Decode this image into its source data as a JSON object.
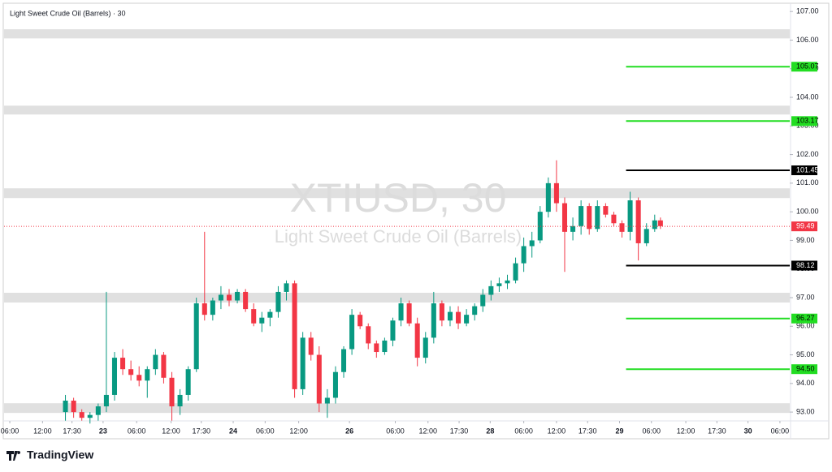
{
  "header": {
    "title": "Light Sweet Crude Oil (Barrels) · 30"
  },
  "watermark": {
    "symbol": "XTIUSD, 30",
    "name": "Light Sweet Crude Oil (Barrels)"
  },
  "footer": {
    "brand": "TradingView"
  },
  "chart_data": {
    "type": "candlestick",
    "up_color": "#089981",
    "down_color": "#f23645",
    "xlim": [
      0,
      96
    ],
    "ylim": [
      92.72,
      107.26
    ],
    "yticks": [
      {
        "value": 93,
        "label": "93.00"
      },
      {
        "value": 94,
        "label": "94.00"
      },
      {
        "value": 95,
        "label": "95.00"
      },
      {
        "value": 96,
        "label": "96.00"
      },
      {
        "value": 97,
        "label": "97.00"
      },
      {
        "value": 98,
        "label": "98.00"
      },
      {
        "value": 99,
        "label": "99.00"
      },
      {
        "value": 100,
        "label": "100.00"
      },
      {
        "value": 101,
        "label": "101.00"
      },
      {
        "value": 102,
        "label": "102.00"
      },
      {
        "value": 103,
        "label": "103.00"
      },
      {
        "value": 104,
        "label": "104.00"
      },
      {
        "value": 105,
        "label": "105.00"
      },
      {
        "value": 106,
        "label": "106.00"
      },
      {
        "value": 107,
        "label": "107.00"
      }
    ],
    "xticks": [
      {
        "value": 0.7,
        "label": "06:00"
      },
      {
        "value": 4.7,
        "label": "12:00"
      },
      {
        "value": 8.3,
        "label": "17:30"
      },
      {
        "value": 12.1,
        "label": "23"
      },
      {
        "value": 16.2,
        "label": "06:00"
      },
      {
        "value": 20.4,
        "label": "12:00"
      },
      {
        "value": 24.1,
        "label": "17:30"
      },
      {
        "value": 28,
        "label": "24"
      },
      {
        "value": 31.9,
        "label": "06:00"
      },
      {
        "value": 36,
        "label": "12:00"
      },
      {
        "value": 42.2,
        "label": "26"
      },
      {
        "value": 47.8,
        "label": "06:00"
      },
      {
        "value": 51.8,
        "label": "12:00"
      },
      {
        "value": 55.6,
        "label": "17:30"
      },
      {
        "value": 59.4,
        "label": "28"
      },
      {
        "value": 63.5,
        "label": "06:00"
      },
      {
        "value": 67.5,
        "label": "12:00"
      },
      {
        "value": 71.3,
        "label": "17:30"
      },
      {
        "value": 75.2,
        "label": "29"
      },
      {
        "value": 79.1,
        "label": "06:00"
      },
      {
        "value": 83.3,
        "label": "12:00"
      },
      {
        "value": 87.1,
        "label": "17:30"
      },
      {
        "value": 90.9,
        "label": "30"
      },
      {
        "value": 94.8,
        "label": "06:00"
      }
    ],
    "x": [
      7.5,
      8.5,
      9.5,
      10.5,
      11.5,
      12.5,
      13.5,
      14.5,
      15.5,
      16.5,
      17.5,
      18.5,
      19.5,
      20.5,
      21.5,
      22.5,
      23.5,
      24.5,
      25.5,
      26.5,
      27.5,
      28.5,
      29.5,
      30.5,
      31.5,
      32.5,
      33.5,
      34.5,
      35.5,
      36.5,
      37.5,
      38.5,
      39.5,
      40.5,
      41.5,
      42.5,
      43.5,
      44.5,
      45.5,
      46.5,
      47.5,
      48.5,
      49.5,
      50.5,
      51.5,
      52.5,
      53.5,
      54.5,
      55.5,
      56.5,
      57.5,
      58.5,
      59.5,
      60.5,
      61.5,
      62.5,
      63.5,
      64.5,
      65.5,
      66.5,
      67.5,
      68.5,
      69.5,
      70.5,
      71.5,
      72.5,
      73.5,
      74.5,
      75.5,
      76.5,
      77.5,
      78.5,
      79.5,
      80.2
    ],
    "ohlc": [
      [
        93.0,
        93.6,
        92.7,
        93.4
      ],
      [
        93.4,
        93.5,
        92.8,
        93.0
      ],
      [
        93.0,
        93.1,
        92.7,
        92.8
      ],
      [
        92.8,
        93.0,
        92.6,
        92.9
      ],
      [
        92.9,
        93.3,
        92.7,
        93.2
      ],
      [
        93.2,
        97.2,
        93.0,
        93.6
      ],
      [
        93.6,
        95.1,
        93.4,
        94.9
      ],
      [
        94.9,
        95.2,
        94.3,
        94.5
      ],
      [
        94.5,
        94.8,
        94.1,
        94.3
      ],
      [
        94.3,
        94.6,
        93.9,
        94.1
      ],
      [
        94.1,
        94.6,
        93.5,
        94.5
      ],
      [
        94.5,
        95.2,
        94.3,
        95.0
      ],
      [
        95.0,
        95.1,
        94.0,
        94.2
      ],
      [
        94.2,
        94.4,
        92.7,
        93.2
      ],
      [
        93.2,
        93.8,
        92.9,
        93.6
      ],
      [
        93.6,
        94.6,
        93.4,
        94.5
      ],
      [
        94.5,
        97.0,
        94.4,
        96.8
      ],
      [
        96.8,
        99.3,
        96.2,
        96.4
      ],
      [
        96.4,
        97.0,
        96.2,
        96.9
      ],
      [
        96.9,
        97.4,
        96.6,
        97.1
      ],
      [
        97.1,
        97.3,
        96.7,
        96.9
      ],
      [
        96.9,
        97.3,
        96.8,
        97.2
      ],
      [
        97.2,
        97.3,
        96.5,
        96.6
      ],
      [
        96.6,
        96.8,
        96.0,
        96.1
      ],
      [
        96.1,
        96.5,
        95.8,
        96.3
      ],
      [
        96.3,
        96.6,
        96.0,
        96.5
      ],
      [
        96.5,
        97.4,
        96.3,
        97.2
      ],
      [
        97.2,
        97.6,
        96.9,
        97.5
      ],
      [
        97.5,
        97.6,
        93.5,
        93.8
      ],
      [
        93.8,
        95.8,
        93.6,
        95.6
      ],
      [
        95.6,
        95.8,
        94.8,
        95.0
      ],
      [
        95.0,
        95.3,
        93.0,
        93.3
      ],
      [
        93.3,
        93.8,
        92.8,
        93.5
      ],
      [
        93.5,
        94.6,
        93.3,
        94.4
      ],
      [
        94.4,
        95.3,
        94.2,
        95.2
      ],
      [
        95.2,
        96.6,
        95.0,
        96.4
      ],
      [
        96.4,
        96.5,
        95.9,
        96.0
      ],
      [
        96.0,
        96.1,
        95.2,
        95.4
      ],
      [
        95.4,
        95.5,
        94.9,
        95.1
      ],
      [
        95.1,
        95.6,
        95.0,
        95.5
      ],
      [
        95.5,
        96.3,
        95.3,
        96.2
      ],
      [
        96.2,
        97.0,
        96.0,
        96.8
      ],
      [
        96.8,
        96.9,
        96.0,
        96.1
      ],
      [
        96.1,
        96.3,
        94.6,
        94.9
      ],
      [
        94.9,
        95.8,
        94.7,
        95.6
      ],
      [
        95.6,
        97.2,
        95.4,
        96.8
      ],
      [
        96.8,
        96.9,
        96.0,
        96.2
      ],
      [
        96.2,
        96.7,
        96.0,
        96.5
      ],
      [
        96.5,
        96.7,
        95.9,
        96.1
      ],
      [
        96.1,
        96.6,
        96.0,
        96.4
      ],
      [
        96.4,
        96.8,
        96.2,
        96.7
      ],
      [
        96.7,
        97.3,
        96.5,
        97.1
      ],
      [
        97.1,
        97.6,
        96.9,
        97.4
      ],
      [
        97.4,
        97.7,
        97.2,
        97.5
      ],
      [
        97.5,
        97.8,
        97.3,
        97.6
      ],
      [
        97.6,
        98.4,
        97.5,
        98.2
      ],
      [
        98.2,
        99.1,
        97.9,
        98.8
      ],
      [
        98.8,
        99.3,
        98.4,
        99.0
      ],
      [
        99.0,
        100.2,
        98.9,
        100.0
      ],
      [
        100.0,
        101.2,
        99.8,
        101.0
      ],
      [
        101.0,
        101.8,
        100.0,
        100.3
      ],
      [
        100.3,
        100.5,
        97.9,
        99.3
      ],
      [
        99.3,
        99.8,
        99.0,
        99.5
      ],
      [
        99.5,
        100.4,
        99.2,
        100.2
      ],
      [
        100.2,
        100.3,
        99.2,
        99.4
      ],
      [
        99.4,
        100.4,
        99.3,
        100.2
      ],
      [
        100.2,
        100.3,
        99.8,
        99.9
      ],
      [
        99.9,
        100.0,
        99.5,
        99.6
      ],
      [
        99.6,
        99.7,
        99.1,
        99.3
      ],
      [
        99.3,
        100.7,
        99.0,
        100.4
      ],
      [
        100.4,
        100.5,
        98.3,
        98.9
      ],
      [
        98.9,
        99.6,
        98.8,
        99.4
      ],
      [
        99.4,
        99.9,
        99.3,
        99.7
      ],
      [
        99.7,
        99.8,
        99.4,
        99.5
      ]
    ],
    "zones": [
      [
        106.06,
        106.38
      ],
      [
        103.4,
        103.71
      ],
      [
        100.48,
        100.82
      ],
      [
        96.83,
        97.17
      ],
      [
        92.97,
        93.31
      ]
    ],
    "zone_color": "#e0e0e0",
    "levels": [
      {
        "value": 105.07,
        "label": "105.07",
        "color": "#22dd22"
      },
      {
        "value": 103.17,
        "label": "103.17",
        "color": "#22dd22"
      },
      {
        "value": 101.45,
        "label": "101.45",
        "color": "#000000"
      },
      {
        "value": 98.12,
        "label": "98.12",
        "color": "#000000"
      },
      {
        "value": 96.27,
        "label": "96.27",
        "color": "#22dd22"
      },
      {
        "value": 94.5,
        "label": "94.50",
        "color": "#22dd22"
      }
    ],
    "level_start": 76.0,
    "last_price": {
      "value": 99.49,
      "label": "99.49",
      "color": "#f23645"
    }
  }
}
